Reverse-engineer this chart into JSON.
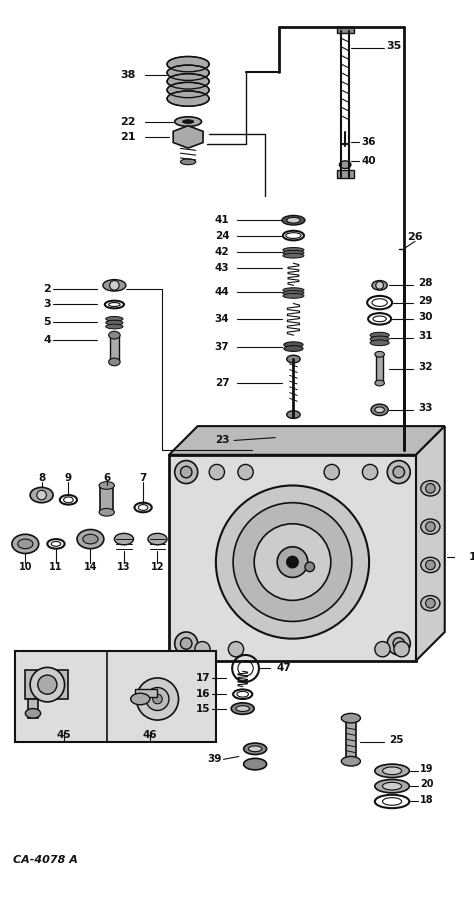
{
  "bg_color": "#ffffff",
  "fg_color": "#000000",
  "caption": "CA-4078 A",
  "figsize": [
    4.74,
    9.02
  ],
  "dpi": 100
}
